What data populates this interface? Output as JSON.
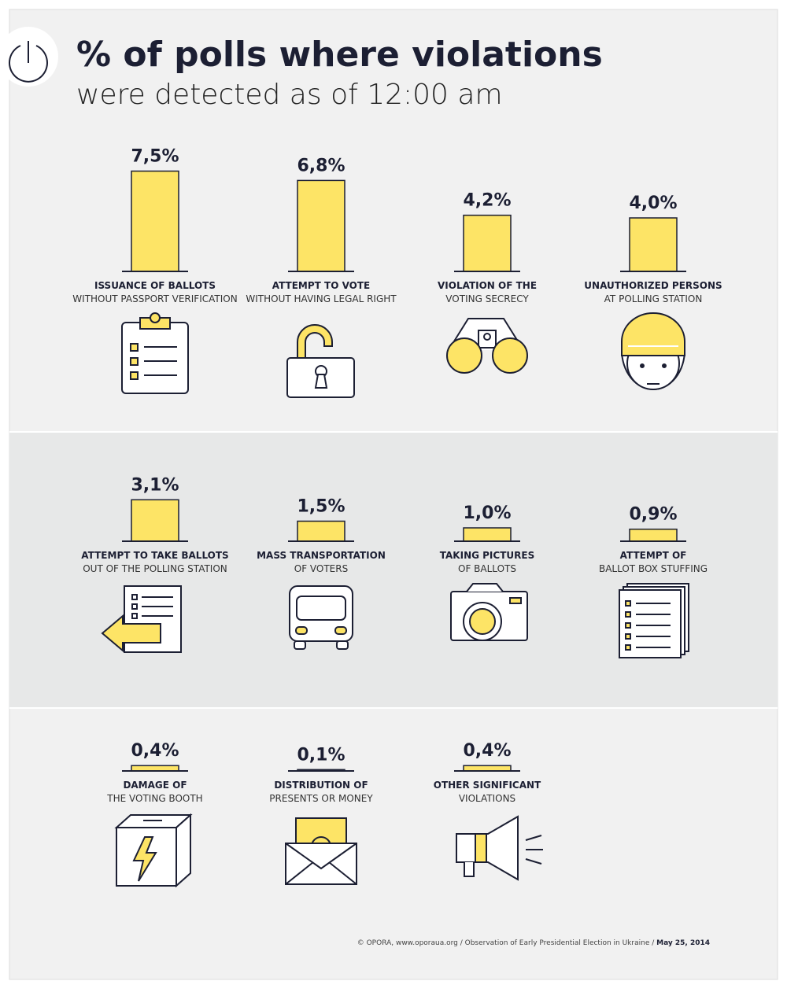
{
  "chart_data": {
    "type": "bar",
    "title": "% of polls where violations",
    "subtitle": "were detected as of 12:00 am",
    "color": "#fde466",
    "categories": [
      "ISSUANCE OF BALLOTS",
      "ATTEMPT TO VOTE",
      "VIOLATION OF THE",
      "UNAUTHORIZED PERSONS",
      "ATTEMPT TO TAKE BALLOTS",
      "MASS TRANSPORTATION",
      "TAKING PICTURES",
      "ATTEMPT OF",
      "DAMAGE OF",
      "DISTRIBUTION OF",
      "OTHER SIGNIFICANT"
    ],
    "category_details": [
      "WITHOUT PASSPORT VERIFICATION",
      "WITHOUT HAVING LEGAL RIGHT",
      "VOTING SECRECY",
      "AT POLLING STATION",
      "OUT OF THE POLLING STATION",
      "OF VOTERS",
      "OF BALLOTS",
      "BALLOT BOX STUFFING",
      "THE VOTING BOOTH",
      "PRESENTS OR MONEY",
      "VIOLATIONS"
    ],
    "values": [
      7.5,
      6.8,
      4.2,
      4.0,
      3.1,
      1.5,
      1.0,
      0.9,
      0.4,
      0.1,
      0.4
    ],
    "value_labels": [
      "7,5%",
      "6,8%",
      "4,2%",
      "4,0%",
      "3,1%",
      "1,5%",
      "1,0%",
      "0,9%",
      "0,4%",
      "0,1%",
      "0,4%"
    ],
    "source": "© OPORA, www.oporaua.org / Observation of Early Presidential Election in Ukraine / ",
    "date": "May 25, 2014"
  }
}
